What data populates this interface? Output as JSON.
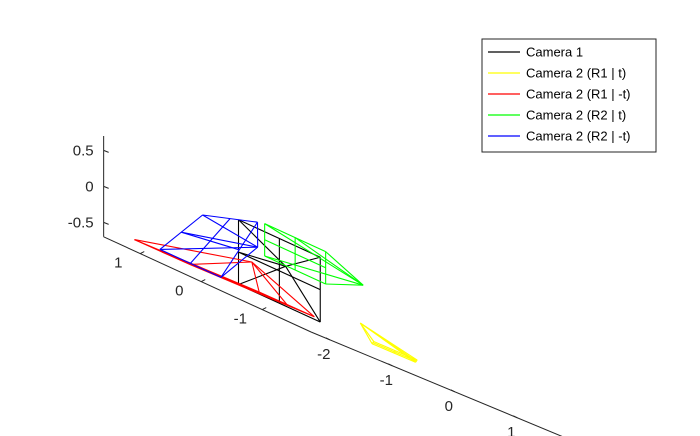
{
  "chart_data": {
    "type": "line",
    "title": "",
    "xlabel": "",
    "ylabel": "",
    "zlabel": "",
    "xlim": [
      -2.3,
      1.8
    ],
    "ylim": [
      -1.8,
      1.6
    ],
    "zlim": [
      -0.7,
      0.7
    ],
    "xticks": [
      "-2",
      "-1",
      "0",
      "1"
    ],
    "yticks": [
      "-1",
      "0",
      "1"
    ],
    "zticks": [
      "-0.5",
      "0",
      "0.5"
    ],
    "grid": false,
    "legend_position": "top-right",
    "series": [
      {
        "name": "Camera 1",
        "color": "#000000",
        "apex": [
          -0.95,
          0.0,
          0.0
        ],
        "base_corners": [
          [
            -1.05,
            0.67,
            0.35
          ],
          [
            -1.05,
            0.67,
            -0.55
          ],
          [
            -1.05,
            -0.67,
            -0.55
          ],
          [
            -1.05,
            -0.67,
            0.35
          ]
        ]
      },
      {
        "name": "Camera 2 (R1 | t)",
        "color": "#ffff00",
        "apex": [
          0.05,
          -0.2,
          -0.35
        ],
        "base_corners": [
          [
            0.25,
            -0.9,
            -0.55
          ],
          [
            1.35,
            0.2,
            -0.55
          ],
          [
            0.85,
            0.4,
            -0.55
          ],
          [
            -0.25,
            -0.7,
            -0.55
          ]
        ]
      },
      {
        "name": "Camera 2 (R1 | -t)",
        "color": "#ff0000",
        "apex": [
          -1.1,
          0.4,
          -0.15
        ],
        "base_corners": [
          [
            -0.3,
            1.1,
            -0.55
          ],
          [
            -0.1,
            0.4,
            -0.55
          ],
          [
            -1.9,
            0.6,
            -0.55
          ],
          [
            -2.1,
            1.3,
            -0.55
          ]
        ]
      },
      {
        "name": "Camera 2 (R2 | t)",
        "color": "#00ff00",
        "apex": [
          -0.1,
          -0.4,
          0.2
        ],
        "base_corners": [
          [
            -0.7,
            -0.4,
            0.45
          ],
          [
            -0.7,
            0.6,
            0.45
          ],
          [
            -0.7,
            0.6,
            0.0
          ],
          [
            -0.7,
            -0.4,
            0.0
          ]
        ]
      },
      {
        "name": "Camera 2 (R2 | -t)",
        "color": "#0000ff",
        "apex": [
          -1.3,
          0.1,
          0.1
        ],
        "base_corners": [
          [
            -1.4,
            0.9,
            0.2
          ],
          [
            -1.4,
            1.6,
            -0.55
          ],
          [
            -1.4,
            0.6,
            -0.55
          ],
          [
            -1.4,
            0.0,
            0.45
          ]
        ]
      }
    ]
  }
}
